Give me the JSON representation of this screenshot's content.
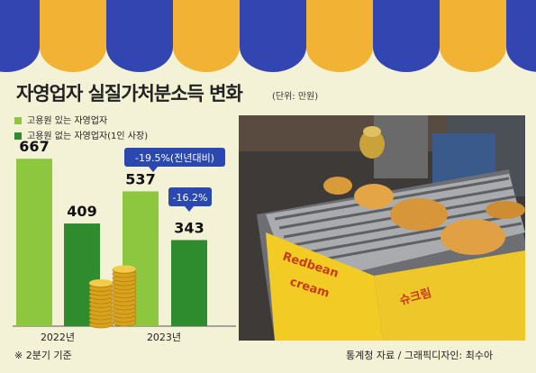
{
  "title": "자영업자 실질가처분소득 변화",
  "unit_label": "(단위: 만원)",
  "footnote": "※ 2분기 기준",
  "source": "통계청 자료 / 그래픽디자인: 최수아",
  "colors": {
    "background": "#f4f2d6",
    "awning_blue": "#3345b0",
    "awning_orange": "#f2b233",
    "light_green": "#8dc63f",
    "dark_green": "#2e8b2e",
    "callout_blue": "#2b47b0",
    "coin_gold": "#e6b422"
  },
  "icons": [
    "awning-stripe-decoration",
    "gold-coins-stack-icon",
    "fish-bread-stall-photo"
  ],
  "chart_data": {
    "type": "bar",
    "title": "자영업자 실질가처분소득 변화",
    "unit": "(단위: 만원)",
    "categories": [
      "2022년",
      "2023년"
    ],
    "series": [
      {
        "name": "고용원 있는 자영업자",
        "values": [
          667,
          537
        ],
        "color": "#8dc63f"
      },
      {
        "name": "고용원 없는 자영업자(1인 사장)",
        "values": [
          409,
          343
        ],
        "color": "#2e8b2e"
      }
    ],
    "data_labels": [
      [
        "667",
        "409"
      ],
      [
        "537",
        "343"
      ]
    ],
    "annotations": [
      {
        "series": 0,
        "category": 1,
        "text": "-19.5%(전년대비)"
      },
      {
        "series": 1,
        "category": 1,
        "text": "-16.2%"
      }
    ],
    "ylim": [
      0,
      700
    ],
    "grid": false,
    "legend_position": "top-left"
  }
}
